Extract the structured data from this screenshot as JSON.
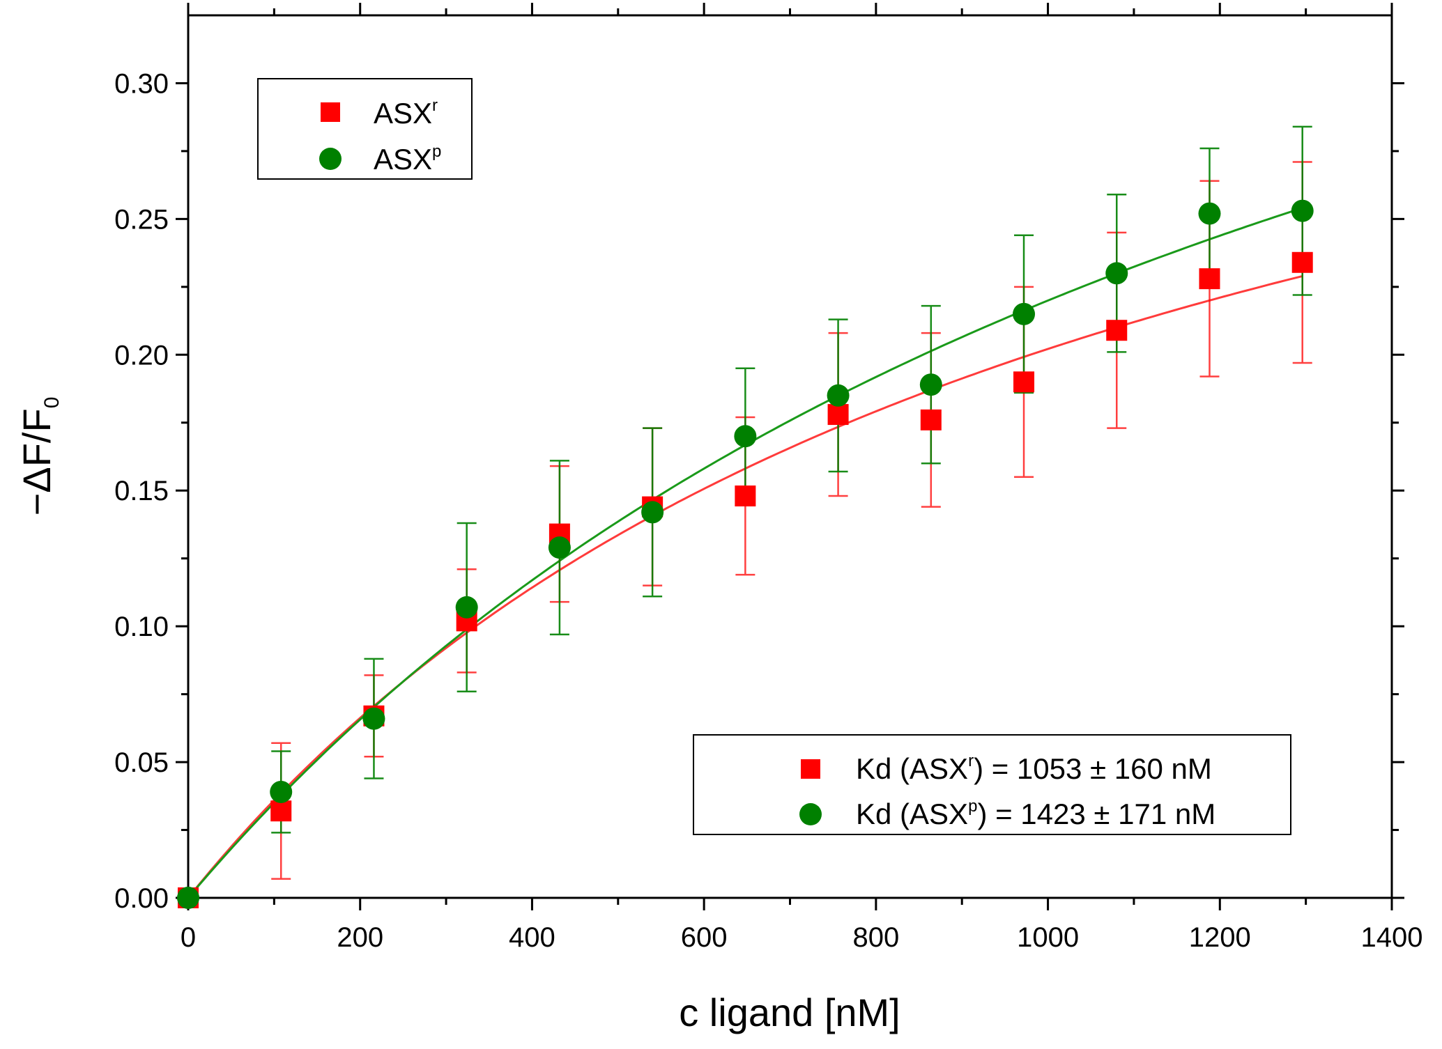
{
  "chart_data": {
    "type": "scatter",
    "xlabel": "c ligand [nM]",
    "ylabel": {
      "prefix": "−ΔF/F",
      "subscript": "0"
    },
    "xlim": [
      0,
      1400
    ],
    "ylim": [
      0,
      0.325
    ],
    "xticks": [
      0,
      200,
      400,
      600,
      800,
      1000,
      1200,
      1400
    ],
    "xtick_labels": [
      "0",
      "200",
      "400",
      "600",
      "800",
      "1000",
      "1200",
      "1400"
    ],
    "yticks": [
      0.0,
      0.05,
      0.1,
      0.15,
      0.2,
      0.25,
      0.3
    ],
    "ytick_labels": [
      "0.00",
      "0.05",
      "0.10",
      "0.15",
      "0.20",
      "0.25",
      "0.30"
    ],
    "grid": false,
    "series": [
      {
        "name": "ASX",
        "sup": "r",
        "marker": "square",
        "color": "#ff0000",
        "fit_color": "#ff3b3b",
        "x": [
          0,
          108,
          216,
          324,
          432,
          540,
          648,
          756,
          864,
          972,
          1080,
          1188,
          1296
        ],
        "y": [
          0.0,
          0.032,
          0.067,
          0.102,
          0.134,
          0.144,
          0.148,
          0.178,
          0.176,
          0.19,
          0.209,
          0.228,
          0.234
        ],
        "err": [
          0,
          0.025,
          0.015,
          0.019,
          0.025,
          0.029,
          0.029,
          0.03,
          0.032,
          0.035,
          0.036,
          0.036,
          0.037
        ],
        "fit": {
          "Bmax": 0.415,
          "Kd": 1053
        }
      },
      {
        "name": "ASX",
        "sup": "p",
        "marker": "circle",
        "color": "#008000",
        "fit_color": "#1a9a1a",
        "x": [
          0,
          108,
          216,
          324,
          432,
          540,
          648,
          756,
          864,
          972,
          1080,
          1188,
          1296
        ],
        "y": [
          0.0,
          0.039,
          0.066,
          0.107,
          0.129,
          0.142,
          0.17,
          0.185,
          0.189,
          0.215,
          0.23,
          0.252,
          0.253
        ],
        "err": [
          0,
          0.015,
          0.022,
          0.031,
          0.032,
          0.031,
          0.025,
          0.028,
          0.029,
          0.029,
          0.029,
          0.024,
          0.031
        ],
        "fit": {
          "Bmax": 0.533,
          "Kd": 1423
        }
      }
    ],
    "legend_top_left": [
      {
        "label": "ASX",
        "sup": "r"
      },
      {
        "label": "ASX",
        "sup": "p"
      }
    ],
    "legend_bottom_right": [
      {
        "pre": "Kd (ASX",
        "sup": "r",
        "post": ") = 1053 ± 160 nM"
      },
      {
        "pre": "Kd (ASX",
        "sup": "p",
        "post": ") = 1423 ± 171 nM"
      }
    ]
  }
}
